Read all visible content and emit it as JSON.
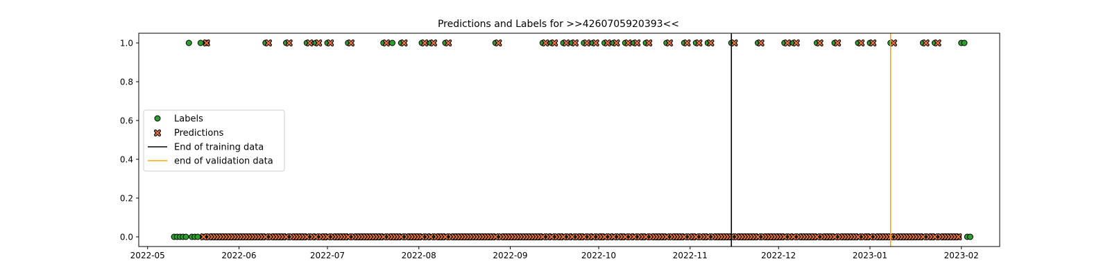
{
  "chart_data": {
    "type": "scatter",
    "title": "Predictions and Labels for >>4260705920393<<",
    "xlabel": "",
    "ylabel": "",
    "x_ticks": [
      "2022-05",
      "2022-06",
      "2022-07",
      "2022-08",
      "2022-09",
      "2022-10",
      "2022-11",
      "2022-12",
      "2023-01",
      "2023-02"
    ],
    "y_ticks": [
      "0.0",
      "0.2",
      "0.4",
      "0.6",
      "0.8",
      "1.0"
    ],
    "xlim": [
      "2022-04-28",
      "2023-02-14"
    ],
    "ylim": [
      -0.05,
      1.05
    ],
    "grid": false,
    "legend_position": "center-left",
    "date_range": [
      "2022-05-10",
      "2023-02-04"
    ],
    "series": [
      {
        "name": "Labels",
        "marker": "circle",
        "color": "#2ca02c",
        "edge_color": "#000000",
        "positive_dates": [
          "2022-05-15",
          "2022-05-19",
          "2022-05-21",
          "2022-06-10",
          "2022-06-17",
          "2022-06-24",
          "2022-06-27",
          "2022-07-01",
          "2022-07-08",
          "2022-07-20",
          "2022-07-23",
          "2022-07-26",
          "2022-08-02",
          "2022-08-05",
          "2022-08-10",
          "2022-08-27",
          "2022-09-12",
          "2022-09-15",
          "2022-09-19",
          "2022-09-22",
          "2022-09-26",
          "2022-09-29",
          "2022-10-03",
          "2022-10-06",
          "2022-10-10",
          "2022-10-13",
          "2022-10-17",
          "2022-10-24",
          "2022-10-30",
          "2022-11-03",
          "2022-11-07",
          "2022-11-15",
          "2022-11-24",
          "2022-12-03",
          "2022-12-06",
          "2022-12-14",
          "2022-12-20",
          "2022-12-28",
          "2023-01-01",
          "2023-01-08",
          "2023-01-19",
          "2023-01-23",
          "2023-02-01",
          "2023-02-02"
        ]
      },
      {
        "name": "Predictions",
        "marker": "x",
        "color": "#e8743b",
        "edge_color": "#000000",
        "positive_dates": [
          "2022-05-21",
          "2022-06-11",
          "2022-06-18",
          "2022-06-25",
          "2022-06-28",
          "2022-07-02",
          "2022-07-09",
          "2022-07-21",
          "2022-07-27",
          "2022-08-03",
          "2022-08-06",
          "2022-08-11",
          "2022-08-28",
          "2022-09-13",
          "2022-09-16",
          "2022-09-20",
          "2022-09-23",
          "2022-09-27",
          "2022-09-30",
          "2022-10-04",
          "2022-10-07",
          "2022-10-11",
          "2022-10-14",
          "2022-10-18",
          "2022-10-25",
          "2022-10-31",
          "2022-11-04",
          "2022-11-08",
          "2022-11-16",
          "2022-11-25",
          "2022-12-04",
          "2022-12-07",
          "2022-12-15",
          "2022-12-21",
          "2022-12-29",
          "2023-01-02",
          "2023-01-09",
          "2023-01-20",
          "2023-01-24"
        ],
        "end_date": "2023-01-31"
      },
      {
        "name": "End of training data",
        "type": "vline",
        "color": "#000000",
        "x": "2022-11-15"
      },
      {
        "name": "end of validation data",
        "type": "vline",
        "color": "#ffa500",
        "x": "2023-01-08"
      }
    ]
  }
}
